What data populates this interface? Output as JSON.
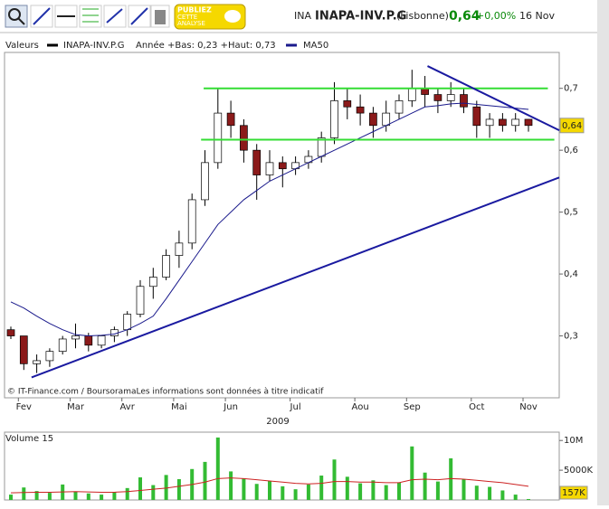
{
  "toolbar": {
    "publish": [
      "PUBLIEZ",
      "CETTE",
      "ANALYSE"
    ],
    "code": "INA",
    "name": "INAPA-INV.P.G",
    "market": "(Lisbonne)",
    "price": "0,64",
    "change": "+0,00%",
    "date": "16 Nov"
  },
  "chart_data": [
    {
      "type": "candlestick",
      "legend_label": "Valeurs",
      "range_note": "Année +Bas: 0,23 +Haut: 0,73",
      "footer": "© IT-Finance.com / BoursoramaLes informations sont données à titre indicatif",
      "x_label": "2009",
      "categories": [
        null,
        "Fev",
        null,
        null,
        null,
        "Mar",
        null,
        null,
        null,
        "Avr",
        null,
        null,
        null,
        "Mai",
        null,
        null,
        null,
        "Jun",
        null,
        null,
        null,
        null,
        "Jul",
        null,
        null,
        null,
        null,
        "Aou",
        null,
        null,
        null,
        "Sep",
        null,
        null,
        null,
        null,
        "Oct",
        null,
        null,
        null,
        "Nov"
      ],
      "series": [
        {
          "name": "INAPA-INV.P.G",
          "color": "#000000",
          "up_color": "#ffffff",
          "down_color": "#8b1a1a",
          "open": [
            0.31,
            0.3,
            0.255,
            0.26,
            0.275,
            0.295,
            0.3,
            0.285,
            0.3,
            0.31,
            0.335,
            0.38,
            0.395,
            0.43,
            0.45,
            0.52,
            0.58,
            0.66,
            0.64,
            0.6,
            0.56,
            0.58,
            0.57,
            0.58,
            0.59,
            0.62,
            0.68,
            0.67,
            0.66,
            0.64,
            0.66,
            0.68,
            0.7,
            0.69,
            0.68,
            0.69,
            0.67,
            0.64,
            0.65,
            0.64,
            0.65
          ],
          "high": [
            0.315,
            0.3,
            0.27,
            0.28,
            0.3,
            0.32,
            0.305,
            0.3,
            0.315,
            0.34,
            0.39,
            0.41,
            0.44,
            0.47,
            0.53,
            0.6,
            0.7,
            0.68,
            0.65,
            0.61,
            0.6,
            0.59,
            0.59,
            0.6,
            0.63,
            0.71,
            0.7,
            0.69,
            0.67,
            0.68,
            0.69,
            0.73,
            0.72,
            0.7,
            0.71,
            0.7,
            0.68,
            0.66,
            0.66,
            0.66,
            0.65
          ],
          "low": [
            0.295,
            0.245,
            0.24,
            0.25,
            0.27,
            0.28,
            0.275,
            0.28,
            0.29,
            0.3,
            0.33,
            0.36,
            0.39,
            0.41,
            0.44,
            0.51,
            0.57,
            0.62,
            0.58,
            0.52,
            0.55,
            0.54,
            0.56,
            0.57,
            0.58,
            0.61,
            0.65,
            0.64,
            0.62,
            0.63,
            0.65,
            0.67,
            0.67,
            0.66,
            0.67,
            0.66,
            0.62,
            0.62,
            0.63,
            0.63,
            0.63
          ],
          "close": [
            0.3,
            0.255,
            0.26,
            0.275,
            0.295,
            0.3,
            0.285,
            0.3,
            0.31,
            0.335,
            0.38,
            0.395,
            0.43,
            0.45,
            0.52,
            0.58,
            0.66,
            0.64,
            0.6,
            0.56,
            0.58,
            0.57,
            0.58,
            0.59,
            0.62,
            0.68,
            0.67,
            0.66,
            0.64,
            0.66,
            0.68,
            0.7,
            0.69,
            0.68,
            0.69,
            0.67,
            0.64,
            0.65,
            0.64,
            0.65,
            0.64
          ]
        },
        {
          "name": "MA50",
          "color": "#1a1a8c",
          "values": [
            0.355,
            0.345,
            0.332,
            0.32,
            0.31,
            0.302,
            0.3,
            0.301,
            0.303,
            0.31,
            0.32,
            0.332,
            0.36,
            0.39,
            0.42,
            0.45,
            0.48,
            0.5,
            0.52,
            0.535,
            0.55,
            0.56,
            0.57,
            0.58,
            0.59,
            0.6,
            0.61,
            0.62,
            0.63,
            0.64,
            0.65,
            0.66,
            0.67,
            0.672,
            0.675,
            0.676,
            0.674,
            0.672,
            0.67,
            0.668,
            0.666
          ]
        }
      ],
      "trendlines": [
        {
          "color": "#33dd33",
          "x": [
            14.9,
            41.5
          ],
          "y": [
            0.7,
            0.7
          ]
        },
        {
          "color": "#33dd33",
          "x": [
            14.7,
            42
          ],
          "y": [
            0.617,
            0.617
          ]
        },
        {
          "color": "#1a1aa0",
          "x": [
            1.6,
            42.5
          ],
          "y": [
            0.233,
            0.557
          ]
        },
        {
          "color": "#1a1aa0",
          "x": [
            32.2,
            42.5
          ],
          "y": [
            0.736,
            0.631
          ]
        }
      ],
      "ylim": [
        0.2,
        0.758
      ],
      "yticks": [
        {
          "value": 0.3,
          "label": "0,3"
        },
        {
          "value": 0.4,
          "label": "0,4"
        },
        {
          "value": 0.5,
          "label": "0,5"
        },
        {
          "value": 0.6,
          "label": "0,6"
        },
        {
          "value": 0.7,
          "label": "0,7"
        }
      ],
      "last_label": {
        "value": 0.64,
        "label": "0,64"
      }
    },
    {
      "type": "bar",
      "title": "Volume 15",
      "series": [
        {
          "color": "#33bb33",
          "values": [
            900000,
            2100000,
            1500000,
            1200000,
            2600000,
            1400000,
            1100000,
            900000,
            1300000,
            2000000,
            3800000,
            2500000,
            4200000,
            3500000,
            5200000,
            6400000,
            10500000,
            4800000,
            3600000,
            2700000,
            3200000,
            2300000,
            1800000,
            2600000,
            4100000,
            6800000,
            3900000,
            2800000,
            3300000,
            2500000,
            2900000,
            9000000,
            4600000,
            3100000,
            7000000,
            3500000,
            2400000,
            2200000,
            1600000,
            900000,
            157000
          ]
        },
        {
          "color": "#cc2222",
          "values": [
            1200000,
            1250000,
            1300000,
            1300000,
            1350000,
            1400000,
            1350000,
            1300000,
            1300000,
            1400000,
            1600000,
            1800000,
            2000000,
            2300000,
            2600000,
            3000000,
            3600000,
            3700000,
            3600000,
            3400000,
            3200000,
            3000000,
            2800000,
            2700000,
            2800000,
            3100000,
            3100000,
            3000000,
            3000000,
            2900000,
            2900000,
            3400000,
            3500000,
            3400000,
            3600000,
            3500000,
            3300000,
            3100000,
            2900000,
            2600000,
            2300000
          ]
        }
      ],
      "ylim": [
        0,
        11400000
      ],
      "yticks": [
        {
          "value": 5000000,
          "label": "5000K"
        },
        {
          "value": 10000000,
          "label": "10M"
        }
      ],
      "last_label": {
        "value": 157000,
        "label": "157K"
      }
    }
  ]
}
